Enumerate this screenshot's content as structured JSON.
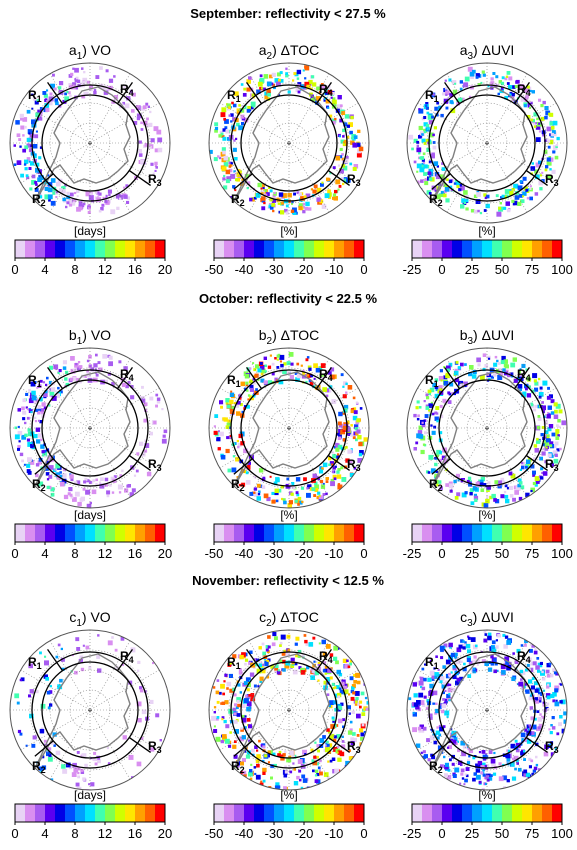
{
  "figure": {
    "rows": [
      {
        "title": "September: reflectivity < 27.5 %",
        "panels": [
          {
            "letter": "a",
            "index": "1",
            "name": "VO",
            "unit": "[days]",
            "scale": "days"
          },
          {
            "letter": "a",
            "index": "2",
            "name": "ΔTOC",
            "unit": "[%]",
            "scale": "toc"
          },
          {
            "letter": "a",
            "index": "3",
            "name": "ΔUVI",
            "unit": "[%]",
            "scale": "uvi"
          }
        ]
      },
      {
        "title": "October: reflectivity < 22.5 %",
        "panels": [
          {
            "letter": "b",
            "index": "1",
            "name": "VO",
            "unit": "[days]",
            "scale": "days"
          },
          {
            "letter": "b",
            "index": "2",
            "name": "ΔTOC",
            "unit": "[%]",
            "scale": "toc"
          },
          {
            "letter": "b",
            "index": "3",
            "name": "ΔUVI",
            "unit": "[%]",
            "scale": "uvi"
          }
        ]
      },
      {
        "title": "November: reflectivity < 12.5 %",
        "panels": [
          {
            "letter": "c",
            "index": "1",
            "name": "VO",
            "unit": "[days]",
            "scale": "days"
          },
          {
            "letter": "c",
            "index": "2",
            "name": "ΔTOC",
            "unit": "[%]",
            "scale": "toc"
          },
          {
            "letter": "c",
            "index": "3",
            "name": "ΔUVI",
            "unit": "[%]",
            "scale": "uvi"
          }
        ]
      }
    ],
    "region_labels": [
      "R1",
      "R2",
      "R3",
      "R4"
    ]
  },
  "chart_data": [
    {
      "type": "heatmap",
      "title": "September: reflectivity < 27.5 %",
      "panels": [
        "a1) VO",
        "a2) ΔTOC",
        "a3) ΔUVI"
      ],
      "colorbars": {
        "days": {
          "ticks": [
            0,
            4,
            8,
            12,
            16,
            20
          ],
          "range": [
            0,
            20
          ],
          "unit": "[days]"
        },
        "toc": {
          "ticks": [
            -50,
            -40,
            -30,
            -20,
            -10,
            0
          ],
          "range": [
            -50,
            0
          ],
          "unit": "[%]"
        },
        "uvi": {
          "ticks": [
            -25,
            0,
            25,
            50,
            75,
            100
          ],
          "range": [
            -25,
            100
          ],
          "unit": "[%]"
        }
      }
    },
    {
      "type": "heatmap",
      "title": "October: reflectivity < 22.5 %",
      "panels": [
        "b1) VO",
        "b2) ΔTOC",
        "b3) ΔUVI"
      ]
    },
    {
      "type": "heatmap",
      "title": "November: reflectivity < 12.5 %",
      "panels": [
        "c1) VO",
        "c2) ΔTOC",
        "c3) ΔUVI"
      ]
    }
  ],
  "colorbar_scales": {
    "days": {
      "ticks": [
        "0",
        "4",
        "8",
        "12",
        "16",
        "20"
      ]
    },
    "toc": {
      "ticks": [
        "-50",
        "-40",
        "-30",
        "-20",
        "-10",
        "0"
      ]
    },
    "uvi": {
      "ticks": [
        "-25",
        "0",
        "25",
        "50",
        "75",
        "100"
      ]
    }
  },
  "palette": [
    "#e8d3f5",
    "#d98ff0",
    "#a85cf0",
    "#5a00f0",
    "#0000e6",
    "#0050ff",
    "#00a0ff",
    "#00e0ff",
    "#40ffb0",
    "#80ff50",
    "#d0ff00",
    "#ffe600",
    "#ffa000",
    "#ff6000",
    "#ff0000"
  ]
}
